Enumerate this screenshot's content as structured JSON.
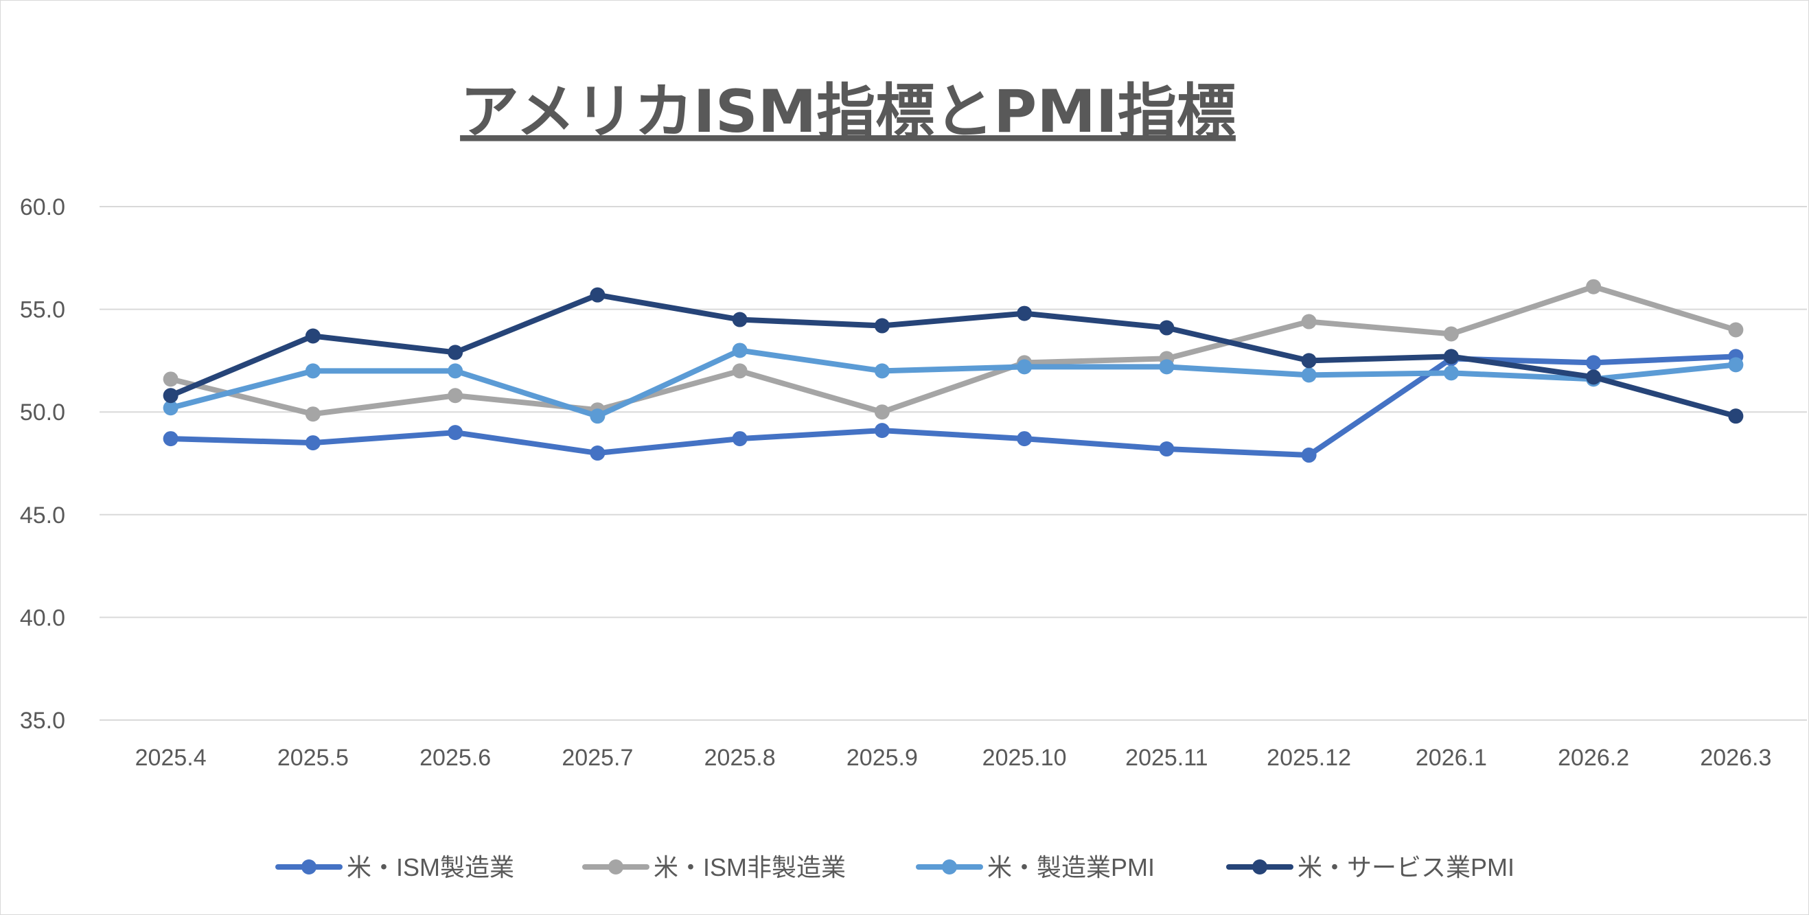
{
  "chart_data": {
    "type": "line",
    "title": "アメリカISM指標とPMI指標",
    "xlabel": "",
    "ylabel": "",
    "ylim": [
      35.0,
      60.0
    ],
    "y_ticks": [
      "35.0",
      "40.0",
      "45.0",
      "50.0",
      "55.0",
      "60.0"
    ],
    "grid": true,
    "legend_position": "bottom",
    "categories": [
      "2025.4",
      "2025.5",
      "2025.6",
      "2025.7",
      "2025.8",
      "2025.9",
      "2025.10",
      "2025.11",
      "2025.12",
      "2026.1",
      "2026.2",
      "2026.3"
    ],
    "series": [
      {
        "name": "米・ISM製造業",
        "color": "#4472c4",
        "values": [
          48.7,
          48.5,
          49.0,
          48.0,
          48.7,
          49.1,
          48.7,
          48.2,
          47.9,
          52.6,
          52.4,
          52.7
        ]
      },
      {
        "name": "米・ISM非製造業",
        "color": "#a5a5a5",
        "values": [
          51.6,
          49.9,
          50.8,
          50.1,
          52.0,
          50.0,
          52.4,
          52.6,
          54.4,
          53.8,
          56.1,
          54.0
        ]
      },
      {
        "name": "米・製造業PMI",
        "color": "#5b9bd5",
        "values": [
          50.2,
          52.0,
          52.0,
          49.8,
          53.0,
          52.0,
          52.2,
          52.2,
          51.8,
          51.9,
          51.6,
          52.3
        ]
      },
      {
        "name": "米・サービス業PMI",
        "color": "#264478",
        "values": [
          50.8,
          53.7,
          52.9,
          55.7,
          54.5,
          54.2,
          54.8,
          54.1,
          52.5,
          52.7,
          51.7,
          49.8
        ]
      }
    ]
  }
}
